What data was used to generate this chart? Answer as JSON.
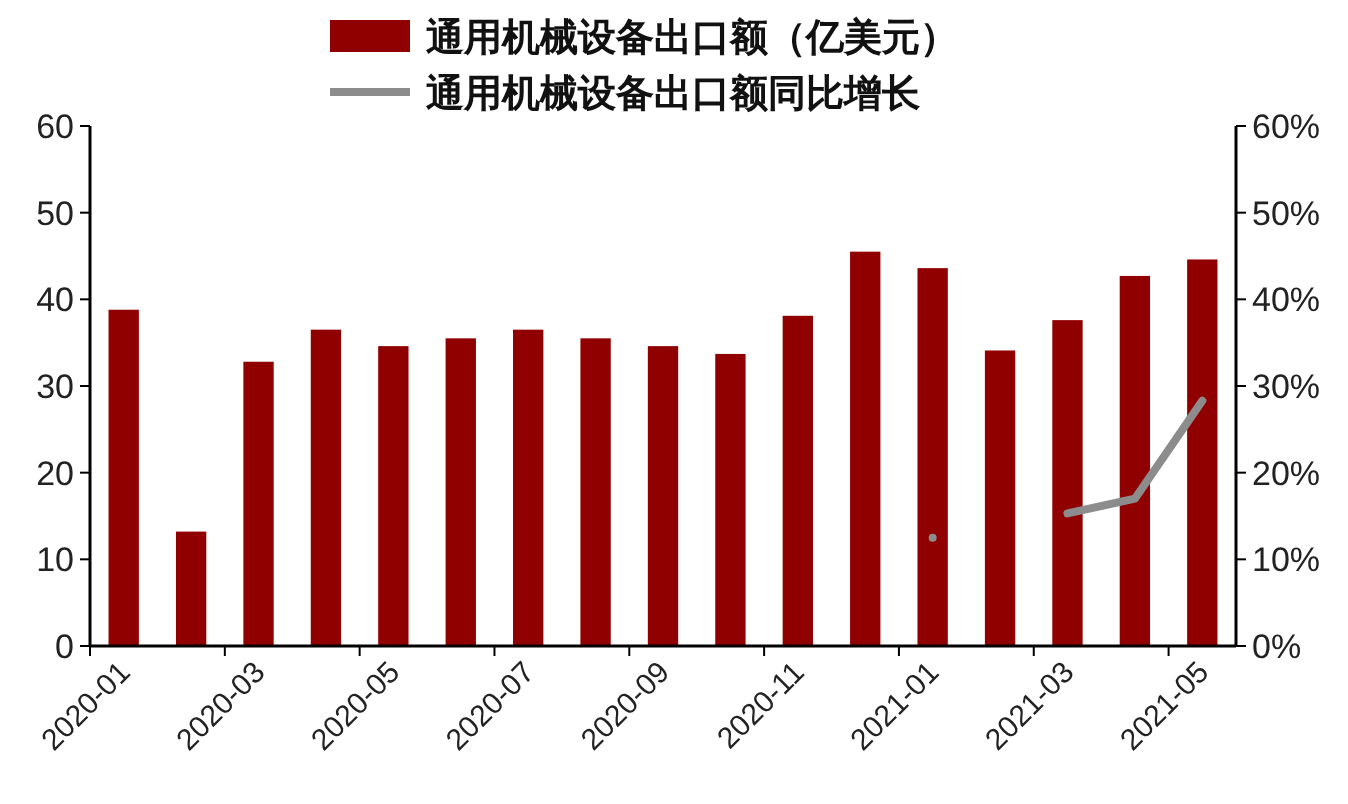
{
  "chart_data": {
    "type": "bar",
    "categories": [
      "2020-01",
      null,
      "2020-03",
      null,
      "2020-05",
      null,
      "2020-07",
      null,
      "2020-09",
      null,
      "2020-11",
      null,
      "2021-01",
      null,
      "2021-03",
      null,
      "2021-05"
    ],
    "series": [
      {
        "name": "通用机械设备出口额（亿美元）",
        "color": "#900000",
        "values": [
          38.8,
          13.2,
          32.8,
          36.5,
          34.6,
          35.5,
          36.5,
          35.5,
          34.6,
          33.7,
          38.1,
          45.5,
          43.6,
          34.1,
          37.6,
          42.7,
          44.6
        ]
      },
      {
        "name": "通用机械设备出口额同比增长",
        "type": "line",
        "axis": "y2",
        "color": "#8c8c8c",
        "values": [
          null,
          null,
          null,
          null,
          null,
          null,
          null,
          null,
          null,
          null,
          null,
          null,
          12.5,
          null,
          15.3,
          17.0,
          28.3
        ]
      }
    ],
    "ylim": [
      0,
      60
    ],
    "yticks": [
      0,
      10,
      20,
      30,
      40,
      50,
      60
    ],
    "y2lim": [
      0,
      60
    ],
    "y2ticks": [
      {
        "value": 0,
        "label": "0%"
      },
      {
        "value": 10,
        "label": "10%"
      },
      {
        "value": 20,
        "label": "20%"
      },
      {
        "value": 30,
        "label": "30%"
      },
      {
        "value": 40,
        "label": "40%"
      },
      {
        "value": 50,
        "label": "50%"
      },
      {
        "value": 60,
        "label": "60%"
      }
    ],
    "legend": "top",
    "grid": false,
    "line_style": "solid",
    "marker": "none"
  }
}
